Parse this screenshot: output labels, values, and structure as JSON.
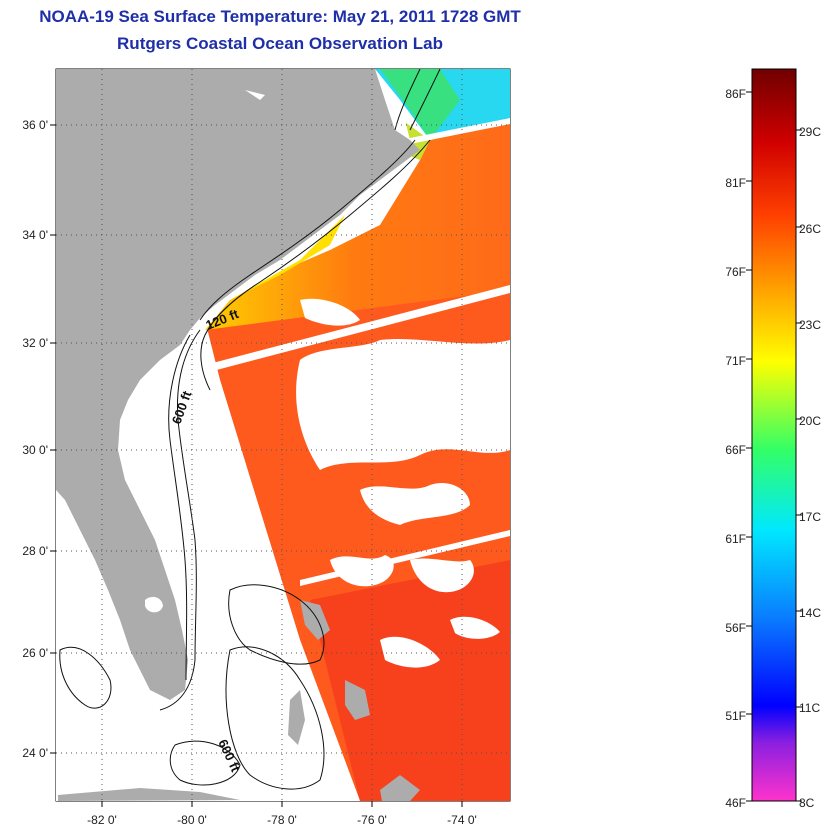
{
  "title": "NOAA-19 Sea Surface Temperature:  May 21, 2011 1728 GMT",
  "subtitle": "Rutgers Coastal Ocean Observation Lab",
  "map": {
    "lat_labels": [
      "36 0'",
      "34 0'",
      "32 0'",
      "30 0'",
      "28 0'",
      "26 0'",
      "24 0'"
    ],
    "lon_labels": [
      "-82 0'",
      "-80 0'",
      "-78 0'",
      "-76 0'",
      "-74 0'"
    ],
    "contours": [
      "120 ft",
      "600 ft",
      "600 ft"
    ],
    "colors": {
      "land": "#acacac",
      "water": "#ffffff",
      "contour": "#111111"
    }
  },
  "colorbar": {
    "f_labels": [
      "86F",
      "81F",
      "76F",
      "71F",
      "66F",
      "61F",
      "56F",
      "51F",
      "46F"
    ],
    "c_labels": [
      "29C",
      "26C",
      "23C",
      "20C",
      "17C",
      "14C",
      "11C",
      "8C"
    ],
    "stops": [
      "#ff33cc",
      "#8a1fe0",
      "#0000ff",
      "#0a7cff",
      "#00e8ff",
      "#33ff66",
      "#ffff00",
      "#ffa000",
      "#ff4000",
      "#d00000",
      "#700000"
    ]
  }
}
